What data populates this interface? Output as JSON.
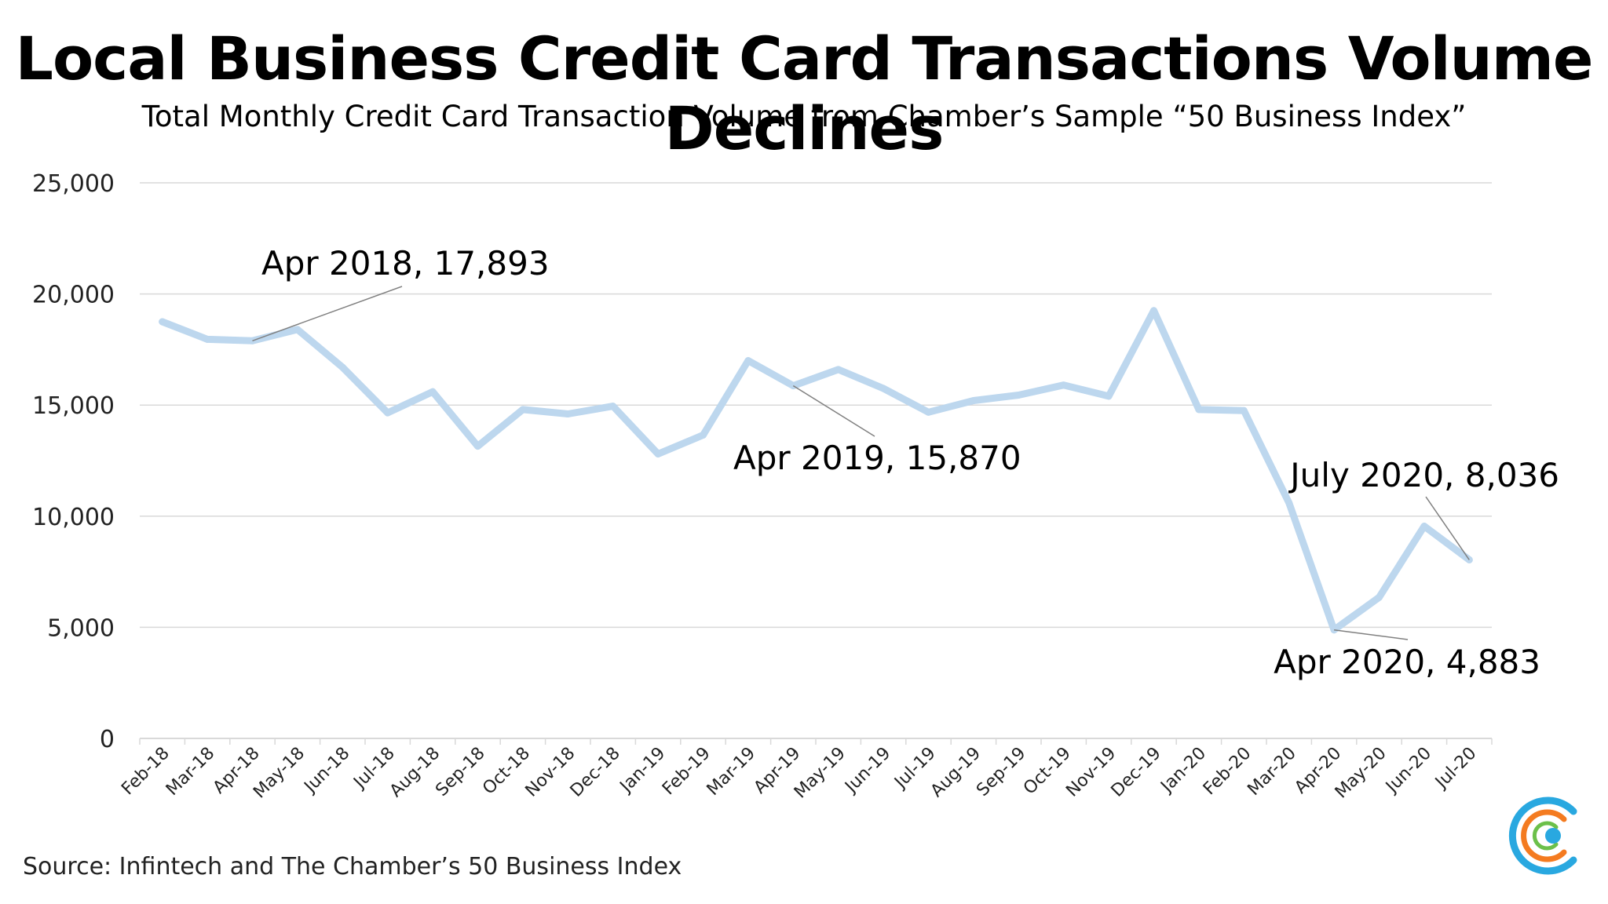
{
  "header": {
    "title": "Local Business Credit Card Transactions Volume Declines",
    "subtitle": "Total Monthly Credit Card Transaction Volume from Chamber’s Sample “50 Business Index”"
  },
  "footer": {
    "source": "Source: Infintech and The Chamber’s 50 Business Index"
  },
  "colors": {
    "line": "#bdd7ee",
    "grid": "#d9d9d9",
    "leader": "#808080",
    "logo_blue": "#29a8e0",
    "logo_orange": "#f47b20",
    "logo_green": "#6cc04a"
  },
  "chart_data": {
    "type": "line",
    "title": "",
    "xlabel": "",
    "ylabel": "",
    "ylim": [
      0,
      25000
    ],
    "y_ticks": [
      0,
      5000,
      10000,
      15000,
      20000,
      25000
    ],
    "y_tick_labels": [
      "0",
      "5,000",
      "10,000",
      "15,000",
      "20,000",
      "25,000"
    ],
    "grid": true,
    "legend": "none",
    "categories": [
      "Feb-18",
      "Mar-18",
      "Apr-18",
      "May-18",
      "Jun-18",
      "Jul-18",
      "Aug-18",
      "Sep-18",
      "Oct-18",
      "Nov-18",
      "Dec-18",
      "Jan-19",
      "Feb-19",
      "Mar-19",
      "Apr-19",
      "May-19",
      "Jun-19",
      "Jul-19",
      "Aug-19",
      "Sep-19",
      "Oct-19",
      "Nov-19",
      "Dec-19",
      "Jan-20",
      "Feb-20",
      "Mar-20",
      "Apr-20",
      "May-20",
      "Jun-20",
      "Jul-20"
    ],
    "series": [
      {
        "values": [
          18750,
          17960,
          17893,
          18400,
          16700,
          14650,
          15600,
          13150,
          14800,
          14600,
          14950,
          12800,
          13650,
          17000,
          15870,
          16600,
          15750,
          14680,
          15200,
          15450,
          15900,
          15400,
          19250,
          14800,
          14750,
          10600,
          4883,
          6350,
          9550,
          8036
        ]
      }
    ],
    "annotations": [
      {
        "text": "Apr 2018, 17,893",
        "index": 2,
        "value": 17893
      },
      {
        "text": "Apr 2019, 15,870",
        "index": 14,
        "value": 15870
      },
      {
        "text": "July 2020, 8,036",
        "index": 29,
        "value": 8036
      },
      {
        "text": "Apr 2020, 4,883",
        "index": 26,
        "value": 4883
      }
    ]
  }
}
